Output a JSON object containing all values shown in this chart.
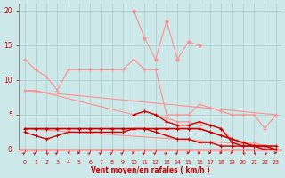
{
  "bg_color": "#cce8e8",
  "grid_color": "#aacccc",
  "bright": "#ff9090",
  "dark": "#cc0000",
  "xlabel": "Vent moyen/en rafales ( km/h )",
  "xlim": [
    -0.5,
    23.5
  ],
  "ylim": [
    0,
    21
  ],
  "yticks": [
    0,
    5,
    10,
    15,
    20
  ],
  "xticks": [
    0,
    1,
    2,
    3,
    4,
    5,
    6,
    7,
    8,
    9,
    10,
    11,
    12,
    13,
    14,
    15,
    16,
    17,
    18,
    19,
    20,
    21,
    22,
    23
  ],
  "lines": {
    "jagged_top": {
      "x": [
        10,
        11,
        12,
        13,
        14,
        15,
        16
      ],
      "y": [
        20.0,
        16.0,
        13.0,
        18.5,
        13.0,
        15.5,
        15.0
      ],
      "color": "#ff9090",
      "lw": 0.8,
      "marker": "*",
      "ms": 3
    },
    "upper_medium": {
      "x": [
        0,
        1,
        2,
        3,
        4,
        5,
        6,
        7,
        8,
        9,
        10,
        11,
        12,
        13,
        14,
        15,
        16,
        17,
        18,
        19,
        20,
        21,
        22,
        23
      ],
      "y": [
        13.0,
        11.5,
        10.5,
        8.5,
        11.5,
        11.5,
        11.5,
        11.5,
        11.5,
        11.5,
        13.0,
        11.5,
        11.5,
        5.0,
        5.0,
        5.0,
        6.5,
        6.0,
        5.5,
        5.0,
        5.0,
        5.0,
        3.0,
        5.0
      ],
      "color": "#ff9090",
      "lw": 0.8,
      "marker": "+",
      "ms": 3
    },
    "diagonal_high": {
      "x": [
        0,
        23
      ],
      "y": [
        8.5,
        5.0
      ],
      "color": "#ff9090",
      "lw": 0.8,
      "marker": null,
      "ms": 0
    },
    "diagonal_low": {
      "x": [
        0,
        23
      ],
      "y": [
        3.0,
        0.5
      ],
      "color": "#ff9090",
      "lw": 0.8,
      "marker": null,
      "ms": 0
    },
    "medium_line": {
      "x": [
        0,
        1,
        10,
        11,
        12,
        13,
        14,
        15,
        16,
        17,
        18,
        19,
        20,
        21,
        22,
        23
      ],
      "y": [
        8.5,
        8.5,
        5.0,
        5.5,
        5.0,
        4.5,
        4.0,
        4.0,
        3.5,
        3.5,
        3.0,
        1.5,
        1.0,
        1.0,
        0.5,
        0.5
      ],
      "color": "#ff9090",
      "lw": 0.8,
      "marker": "+",
      "ms": 3
    },
    "flat_dark": {
      "x": [
        0,
        1,
        2,
        3,
        4,
        5,
        6,
        7,
        8,
        9,
        10,
        11,
        12,
        13,
        14,
        15,
        16,
        17,
        18,
        19,
        20,
        21,
        22,
        23
      ],
      "y": [
        3.0,
        3.0,
        3.0,
        3.0,
        3.0,
        3.0,
        3.0,
        3.0,
        3.0,
        3.0,
        3.0,
        3.0,
        3.0,
        3.0,
        3.0,
        3.0,
        3.0,
        2.5,
        2.0,
        1.5,
        1.0,
        0.5,
        0.5,
        0.0
      ],
      "color": "#cc0000",
      "lw": 1.2,
      "marker": "+",
      "ms": 3
    },
    "low_dark": {
      "x": [
        0,
        1,
        2,
        3,
        4,
        5,
        6,
        7,
        8,
        9,
        10,
        11,
        12,
        13,
        14,
        15,
        16,
        17,
        18,
        19,
        20,
        21,
        22,
        23
      ],
      "y": [
        2.5,
        2.0,
        1.5,
        2.0,
        2.5,
        2.5,
        2.5,
        2.5,
        2.5,
        2.5,
        3.0,
        3.0,
        2.5,
        2.0,
        1.5,
        1.5,
        1.0,
        1.0,
        0.5,
        0.5,
        0.5,
        0.5,
        0.0,
        0.0
      ],
      "color": "#cc0000",
      "lw": 1.0,
      "marker": "+",
      "ms": 3
    },
    "curve_dark": {
      "x": [
        10,
        11,
        12,
        13,
        14,
        15,
        16,
        17,
        18,
        19,
        20,
        21,
        22,
        23
      ],
      "y": [
        5.0,
        5.5,
        5.0,
        4.0,
        3.5,
        3.5,
        4.0,
        3.5,
        3.0,
        1.0,
        0.5,
        0.5,
        0.5,
        0.5
      ],
      "color": "#cc0000",
      "lw": 1.0,
      "marker": "+",
      "ms": 3
    }
  },
  "arrows": {
    "angles_deg": [
      45,
      45,
      315,
      45,
      270,
      90,
      45,
      45,
      45,
      45,
      90,
      45,
      45,
      45,
      45,
      90,
      90,
      90,
      90,
      90,
      315,
      315,
      315,
      90
    ]
  }
}
